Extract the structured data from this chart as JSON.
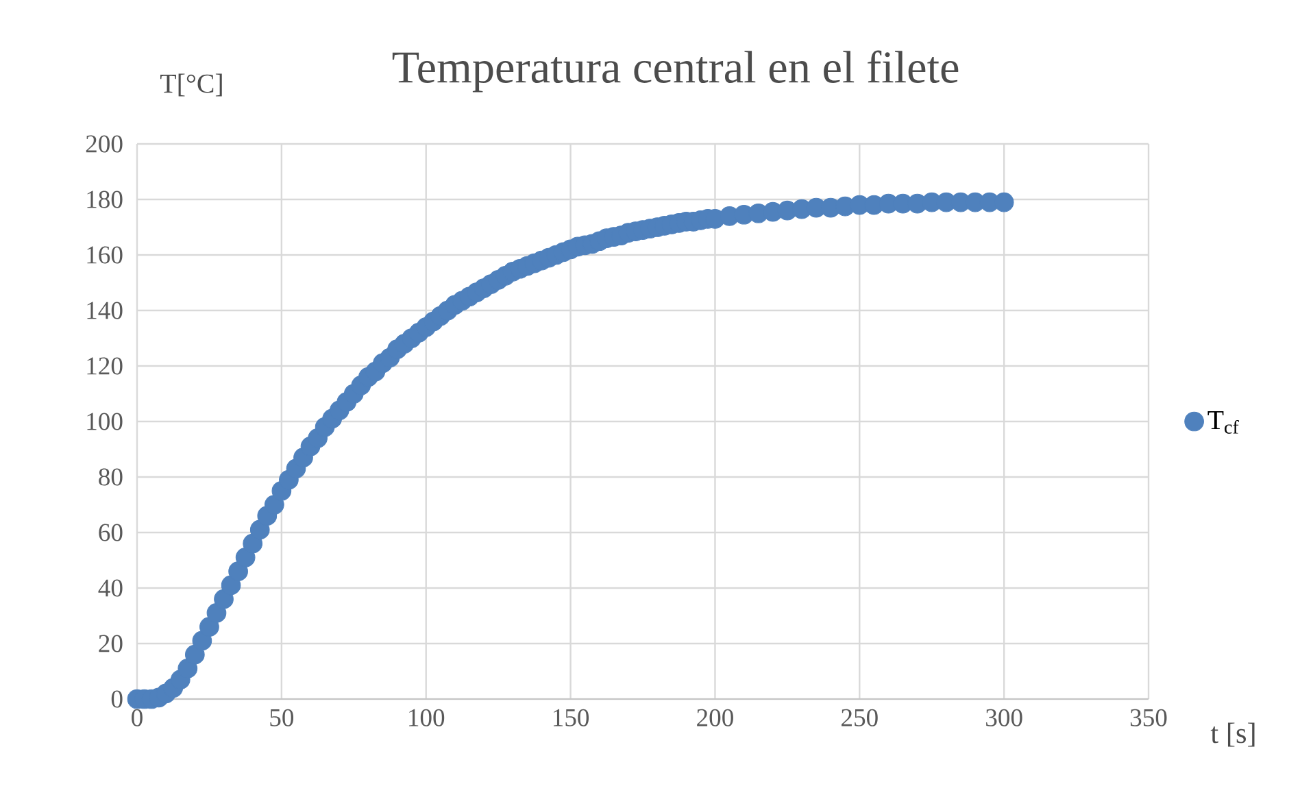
{
  "chart_data": {
    "type": "scatter",
    "title": "Temperatura central en el filete",
    "xlabel": "t [s]",
    "ylabel": "T[°C]",
    "x": [
      0,
      2.5,
      5,
      7.5,
      10,
      12.5,
      15,
      17.5,
      20,
      22.5,
      25,
      27.5,
      30,
      32.5,
      35,
      37.5,
      40,
      42.5,
      45,
      47.5,
      50,
      52.5,
      55,
      57.5,
      60,
      62.5,
      65,
      67.5,
      70,
      72.5,
      75,
      77.5,
      80,
      82.5,
      85,
      87.5,
      90,
      92.5,
      95,
      97.5,
      100,
      102.5,
      105,
      107.5,
      110,
      112.5,
      115,
      117.5,
      120,
      122.5,
      125,
      127.5,
      130,
      132.5,
      135,
      137.5,
      140,
      142.5,
      145,
      147.5,
      150,
      152.5,
      155,
      157.5,
      160,
      162.5,
      165,
      167.5,
      170,
      172.5,
      175,
      177.5,
      180,
      182.5,
      185,
      187.5,
      190,
      192.5,
      195,
      197.5,
      200,
      205,
      210,
      215,
      220,
      225,
      230,
      235,
      240,
      245,
      250,
      255,
      260,
      265,
      270,
      275,
      280,
      285,
      290,
      295,
      300
    ],
    "series": [
      {
        "name": "T$_{cf}$",
        "color": "#4f81bd",
        "values": [
          0,
          0,
          0,
          0.5,
          2,
          4,
          7,
          11,
          16,
          21,
          26,
          31,
          36,
          41,
          46,
          51,
          56,
          61,
          66,
          70,
          75,
          79,
          83,
          87,
          91,
          94,
          98,
          101,
          104,
          107,
          110,
          113,
          116,
          118,
          121,
          123,
          126,
          128,
          130,
          132,
          134,
          136,
          138,
          140,
          142,
          143.5,
          145,
          146.5,
          148,
          149.5,
          151,
          152.5,
          154,
          155,
          156,
          157,
          158,
          159,
          160,
          161,
          162,
          163,
          163.5,
          164,
          165,
          166,
          166.5,
          167,
          168,
          168.5,
          169,
          169.5,
          170,
          170.5,
          171,
          171.5,
          172,
          172,
          172.5,
          173,
          173,
          174,
          174.5,
          175,
          175.5,
          176,
          176.5,
          177,
          177,
          177.5,
          178,
          178,
          178.5,
          178.5,
          178.5,
          179,
          179,
          179,
          179,
          179,
          179
        ]
      }
    ],
    "xlim": [
      0,
      350
    ],
    "ylim": [
      0,
      200
    ],
    "xticks": [
      0,
      50,
      100,
      150,
      200,
      250,
      300,
      350
    ],
    "yticks": [
      0,
      20,
      40,
      60,
      80,
      100,
      120,
      140,
      160,
      180,
      200
    ],
    "grid": true,
    "legend": "right",
    "marker": "circle"
  }
}
